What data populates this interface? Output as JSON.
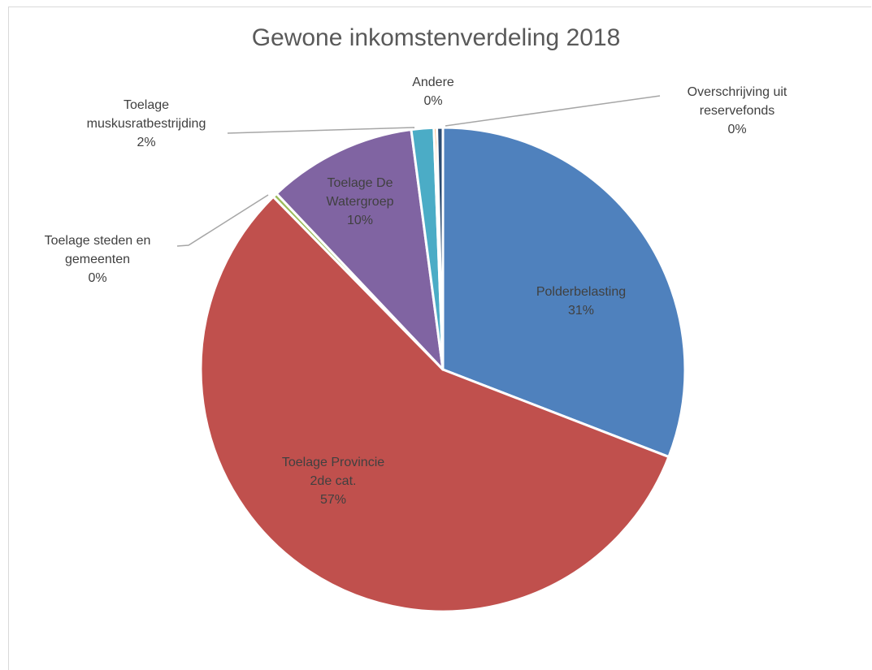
{
  "chart_data": {
    "type": "pie",
    "title": "Gewone inkomstenverdeling 2018",
    "categories": [
      "Polderbelasting",
      "Toelage Provincie 2de cat.",
      "Toelage steden en gemeenten",
      "Toelage De Watergroep",
      "Toelage muskusratbestrijding",
      "Andere",
      "Overschrijving uit reservefonds"
    ],
    "values": [
      31,
      57,
      0.3,
      10,
      1.5,
      0.2,
      0.4
    ],
    "value_labels": [
      "31%",
      "57%",
      "0%",
      "10%",
      "2%",
      "0%",
      "0%"
    ],
    "colors": [
      "#4f81bd",
      "#c0504d",
      "#9bbb59",
      "#8064a2",
      "#4bacc6",
      "#f79646",
      "#2c4d75"
    ]
  }
}
